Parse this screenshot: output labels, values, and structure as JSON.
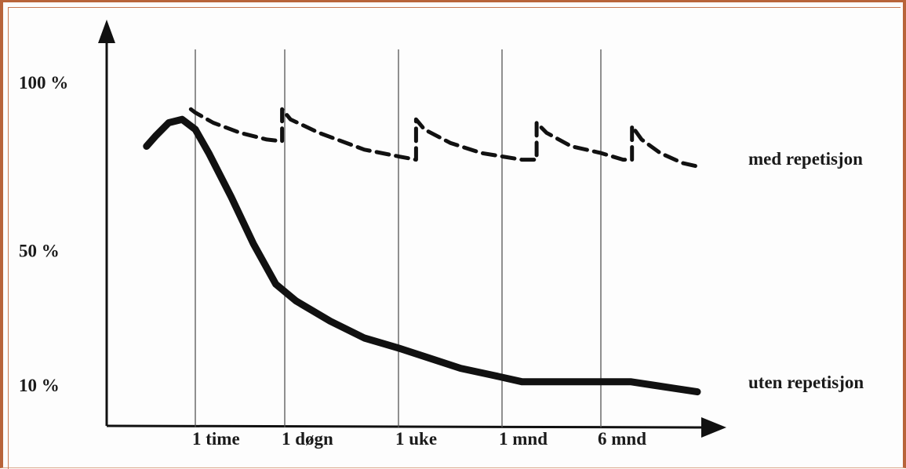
{
  "chart_data": {
    "type": "line",
    "y_tick_labels": [
      "100 %",
      "50 %",
      "10 %"
    ],
    "y_tick_values": [
      100,
      50,
      10
    ],
    "x_tick_labels": [
      "1 time",
      "1 døgn",
      "1 uke",
      "1 mnd",
      "6 mnd"
    ],
    "x_tick_index": [
      1,
      2,
      3,
      4,
      5
    ],
    "ylim": [
      -5,
      105
    ],
    "xlim": [
      0,
      6.3
    ],
    "grid": "vertical lines at each x tick",
    "series": [
      {
        "name": "med repetisjon",
        "style": "dashed",
        "points": [
          [
            0.95,
            92
          ],
          [
            1.0,
            91
          ],
          [
            1.2,
            88
          ],
          [
            1.5,
            85
          ],
          [
            1.8,
            83
          ],
          [
            1.97,
            82.5
          ],
          [
            1.97,
            92
          ],
          [
            2.05,
            89
          ],
          [
            2.3,
            85
          ],
          [
            2.7,
            80
          ],
          [
            3.0,
            78
          ],
          [
            3.17,
            77
          ],
          [
            3.17,
            89
          ],
          [
            3.25,
            86
          ],
          [
            3.5,
            82
          ],
          [
            3.8,
            79
          ],
          [
            4.2,
            77
          ],
          [
            4.35,
            77
          ],
          [
            4.35,
            88
          ],
          [
            4.45,
            85
          ],
          [
            4.7,
            81
          ],
          [
            5.0,
            79
          ],
          [
            5.3,
            77
          ],
          [
            5.42,
            77
          ],
          [
            5.42,
            87
          ],
          [
            5.55,
            83
          ],
          [
            5.8,
            79
          ],
          [
            6.1,
            76
          ],
          [
            6.3,
            75
          ]
        ]
      },
      {
        "name": "uten repetisjon",
        "style": "solid",
        "points": [
          [
            0.45,
            81
          ],
          [
            0.55,
            84
          ],
          [
            0.7,
            88
          ],
          [
            0.85,
            89
          ],
          [
            1.0,
            86
          ],
          [
            1.15,
            79
          ],
          [
            1.4,
            66
          ],
          [
            1.65,
            52
          ],
          [
            1.9,
            40
          ],
          [
            2.1,
            35
          ],
          [
            2.4,
            29
          ],
          [
            2.7,
            24
          ],
          [
            3.0,
            21
          ],
          [
            3.3,
            18
          ],
          [
            3.6,
            15
          ],
          [
            3.9,
            13
          ],
          [
            4.2,
            11
          ],
          [
            4.5,
            11
          ],
          [
            4.8,
            11
          ],
          [
            5.1,
            11
          ],
          [
            5.4,
            11
          ],
          [
            5.7,
            10
          ],
          [
            6.0,
            9
          ],
          [
            6.3,
            8
          ]
        ]
      }
    ]
  }
}
